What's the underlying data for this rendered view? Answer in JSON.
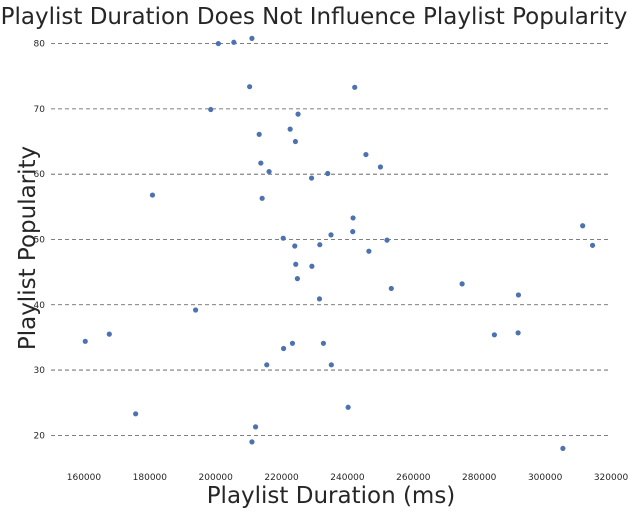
{
  "chart_data": {
    "type": "scatter",
    "title": "Playlist Duration Does Not Influence Playlist Popularity",
    "xlabel": "Playlist Duration (ms)",
    "ylabel": "Playlist Popularity",
    "xlim": [
      150000,
      320000
    ],
    "ylim": [
      15,
      83
    ],
    "xticks": [
      160000,
      180000,
      200000,
      220000,
      240000,
      260000,
      280000,
      300000,
      320000
    ],
    "xtick_labels": [
      "160000",
      "180000",
      "200000",
      "220000",
      "240000",
      "260000",
      "280000",
      "300000",
      "320000"
    ],
    "yticks": [
      20,
      30,
      40,
      50,
      60,
      70,
      80
    ],
    "ytick_labels": [
      "20",
      "30",
      "40",
      "50",
      "60",
      "70",
      "80"
    ],
    "grid": "horizontal dashed",
    "legend": "none",
    "color": "#4c72b0",
    "x": [
      200800,
      205500,
      211000,
      210300,
      242200,
      198500,
      225000,
      213200,
      222600,
      224200,
      245600,
      250000,
      213700,
      216200,
      229100,
      234000,
      180800,
      214100,
      241700,
      235000,
      241600,
      220500,
      224000,
      252000,
      231600,
      246500,
      224300,
      229200,
      224800,
      253300,
      274800,
      291900,
      231500,
      193900,
      167700,
      284600,
      291800,
      160400,
      223300,
      232700,
      220600,
      235100,
      215500,
      240200,
      175700,
      212100,
      211000,
      305400,
      311400,
      314400
    ],
    "y": [
      80.0,
      80.2,
      80.8,
      73.4,
      73.3,
      69.9,
      69.2,
      66.1,
      66.9,
      65.0,
      63.0,
      61.1,
      61.7,
      60.4,
      59.4,
      60.1,
      56.8,
      56.3,
      53.3,
      50.7,
      51.2,
      50.2,
      49.0,
      49.9,
      49.2,
      48.2,
      46.2,
      45.9,
      44.0,
      42.5,
      43.2,
      41.5,
      40.9,
      39.2,
      35.5,
      35.4,
      35.7,
      34.4,
      34.1,
      34.1,
      33.3,
      30.8,
      30.8,
      24.3,
      23.3,
      21.3,
      19.0,
      18.0,
      52.1,
      49.1
    ]
  }
}
